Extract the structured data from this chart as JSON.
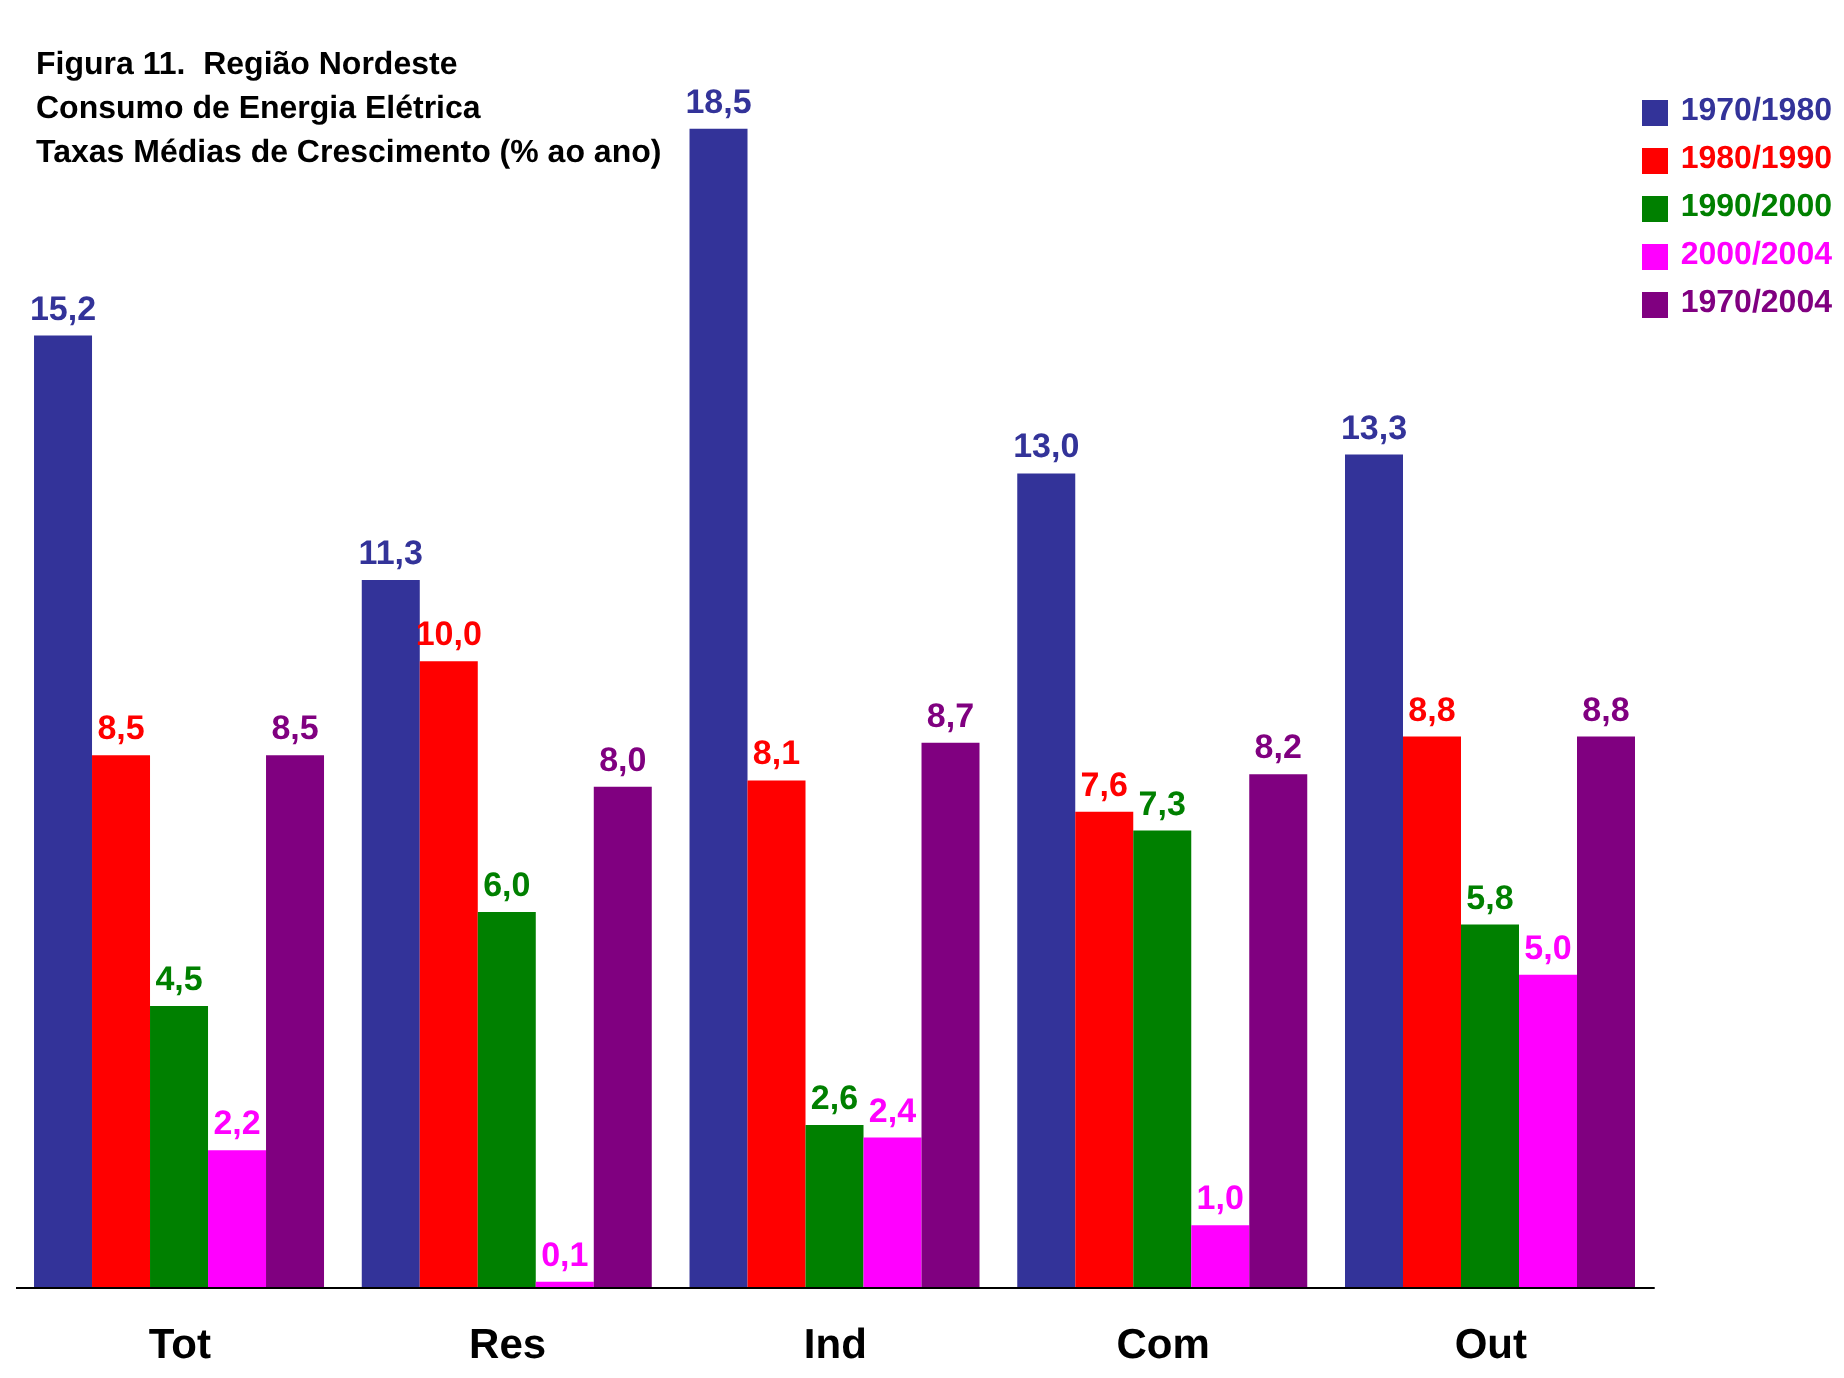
{
  "chart_data": {
    "type": "bar",
    "title": "Figura 11.  Região Nordeste\nConsumo de Energia Elétrica",
    "subtitle": "Taxas Médias de Crescimento (% ao ano)",
    "categories": [
      "Tot",
      "Res",
      "Ind",
      "Com",
      "Out"
    ],
    "series": [
      {
        "name": "1970/1980",
        "color": "#333399",
        "values": [
          15.2,
          11.3,
          18.5,
          13.0,
          13.3
        ],
        "value_labels": [
          "15,2",
          "11,3",
          "18,5",
          "13,0",
          "13,3"
        ]
      },
      {
        "name": "1980/1990",
        "color": "#ff0000",
        "values": [
          8.5,
          10.0,
          8.1,
          7.6,
          8.8
        ],
        "value_labels": [
          "8,5",
          "10,0",
          "8,1",
          "7,6",
          "8,8"
        ]
      },
      {
        "name": "1990/2000",
        "color": "#008000",
        "values": [
          4.5,
          6.0,
          2.6,
          7.3,
          5.8
        ],
        "value_labels": [
          "4,5",
          "6,0",
          "2,6",
          "7,3",
          "5,8"
        ]
      },
      {
        "name": "2000/2004",
        "color": "#ff00ff",
        "values": [
          2.2,
          0.1,
          2.4,
          1.0,
          5.0
        ],
        "value_labels": [
          "2,2",
          "0,1",
          "2,4",
          "1,0",
          "5,0"
        ]
      },
      {
        "name": "1970/2004",
        "color": "#800080",
        "values": [
          8.5,
          8.0,
          8.7,
          8.2,
          8.8
        ],
        "value_labels": [
          "8,5",
          "8,0",
          "8,7",
          "8,2",
          "8,8"
        ]
      }
    ],
    "legend": "top right"
  }
}
